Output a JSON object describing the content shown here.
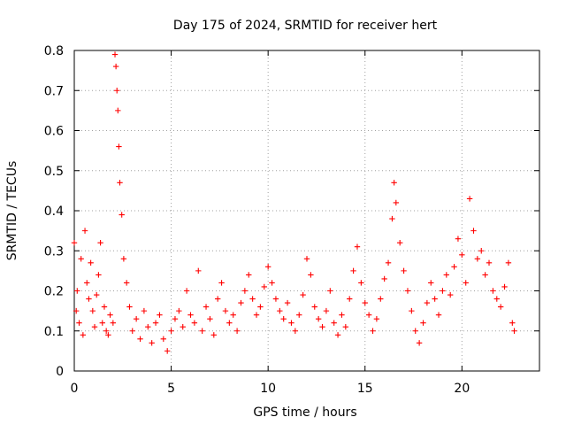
{
  "chart_data": {
    "type": "scatter",
    "title": "Day 175 of 2024, SRMTID for receiver hert",
    "xlabel": "GPS time / hours",
    "ylabel": "SRMTID / TECUs",
    "xlim": [
      0,
      24
    ],
    "ylim": [
      0,
      0.8
    ],
    "xticks": [
      0,
      5,
      10,
      15,
      20
    ],
    "xtick_labels": [
      "0",
      "5",
      "10",
      "15",
      "20"
    ],
    "yticks": [
      0,
      0.1,
      0.2,
      0.3,
      0.4,
      0.5,
      0.6,
      0.7,
      0.8
    ],
    "ytick_labels": [
      "0",
      "0.1",
      "0.2",
      "0.3",
      "0.4",
      "0.5",
      "0.6",
      "0.7",
      "0.8"
    ],
    "grid": true,
    "marker": "plus",
    "color": "#ff0000",
    "series": [
      {
        "name": "SRMTID",
        "x": [
          0.0,
          0.1,
          0.15,
          0.25,
          0.35,
          0.45,
          0.55,
          0.65,
          0.75,
          0.85,
          0.95,
          1.05,
          1.15,
          1.25,
          1.35,
          1.45,
          1.55,
          1.65,
          1.75,
          1.85,
          2.0,
          2.1,
          2.15,
          2.2,
          2.25,
          2.3,
          2.35,
          2.45,
          2.55,
          2.7,
          2.85,
          3.0,
          3.2,
          3.4,
          3.6,
          3.8,
          4.0,
          4.2,
          4.4,
          4.6,
          4.8,
          5.0,
          5.2,
          5.4,
          5.6,
          5.8,
          6.0,
          6.2,
          6.4,
          6.6,
          6.8,
          7.0,
          7.2,
          7.4,
          7.6,
          7.8,
          8.0,
          8.2,
          8.4,
          8.6,
          8.8,
          9.0,
          9.2,
          9.4,
          9.6,
          9.8,
          10.0,
          10.2,
          10.4,
          10.6,
          10.8,
          11.0,
          11.2,
          11.4,
          11.6,
          11.8,
          12.0,
          12.2,
          12.4,
          12.6,
          12.8,
          13.0,
          13.2,
          13.4,
          13.6,
          13.8,
          14.0,
          14.2,
          14.4,
          14.6,
          14.8,
          15.0,
          15.2,
          15.4,
          15.6,
          15.8,
          16.0,
          16.2,
          16.4,
          16.5,
          16.6,
          16.8,
          17.0,
          17.2,
          17.4,
          17.6,
          17.8,
          18.0,
          18.2,
          18.4,
          18.6,
          18.8,
          19.0,
          19.2,
          19.4,
          19.6,
          19.8,
          20.0,
          20.2,
          20.4,
          20.6,
          20.8,
          21.0,
          21.2,
          21.4,
          21.6,
          21.8,
          22.0,
          22.2,
          22.4,
          22.6,
          22.7
        ],
        "y": [
          0.32,
          0.15,
          0.2,
          0.12,
          0.28,
          0.09,
          0.35,
          0.22,
          0.18,
          0.27,
          0.15,
          0.11,
          0.19,
          0.24,
          0.32,
          0.12,
          0.16,
          0.1,
          0.09,
          0.14,
          0.12,
          0.79,
          0.76,
          0.7,
          0.65,
          0.56,
          0.47,
          0.39,
          0.28,
          0.22,
          0.16,
          0.1,
          0.13,
          0.08,
          0.15,
          0.11,
          0.07,
          0.12,
          0.14,
          0.08,
          0.05,
          0.1,
          0.13,
          0.15,
          0.11,
          0.2,
          0.14,
          0.12,
          0.25,
          0.1,
          0.16,
          0.13,
          0.09,
          0.18,
          0.22,
          0.15,
          0.12,
          0.14,
          0.1,
          0.17,
          0.2,
          0.24,
          0.18,
          0.14,
          0.16,
          0.21,
          0.26,
          0.22,
          0.18,
          0.15,
          0.13,
          0.17,
          0.12,
          0.1,
          0.14,
          0.19,
          0.28,
          0.24,
          0.16,
          0.13,
          0.11,
          0.15,
          0.2,
          0.12,
          0.09,
          0.14,
          0.11,
          0.18,
          0.25,
          0.31,
          0.22,
          0.17,
          0.14,
          0.1,
          0.13,
          0.18,
          0.23,
          0.27,
          0.38,
          0.47,
          0.42,
          0.32,
          0.25,
          0.2,
          0.15,
          0.1,
          0.07,
          0.12,
          0.17,
          0.22,
          0.18,
          0.14,
          0.2,
          0.24,
          0.19,
          0.26,
          0.33,
          0.29,
          0.22,
          0.43,
          0.35,
          0.28,
          0.3,
          0.24,
          0.27,
          0.2,
          0.18,
          0.16,
          0.21,
          0.27,
          0.12,
          0.1
        ]
      }
    ]
  }
}
